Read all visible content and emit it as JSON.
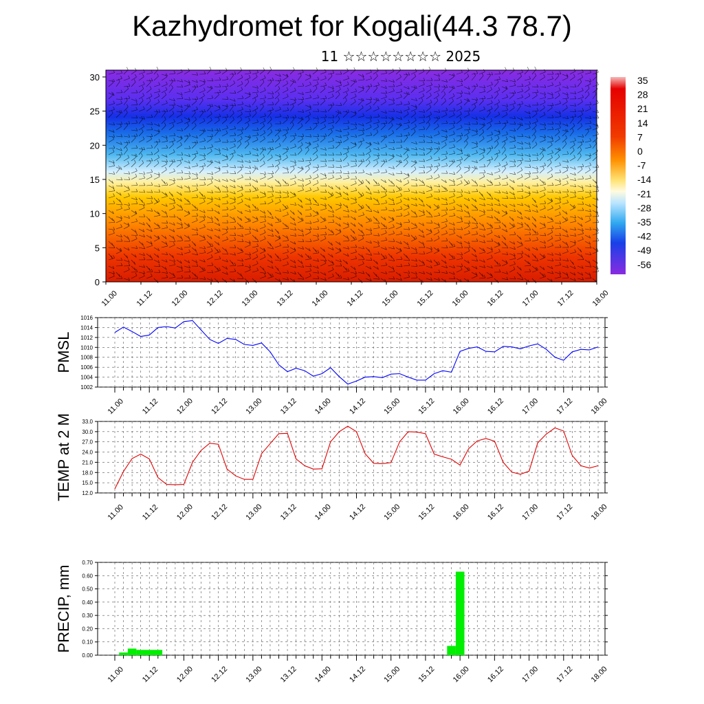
{
  "header": {
    "title": "Kazhydromet for Kogali(44.3 78.7)",
    "subtitle": "11 ☆☆☆☆☆☆☆☆ 2025"
  },
  "chart_data": [
    {
      "type": "heatmap",
      "title": "",
      "xlabel": "",
      "ylabel": "",
      "x_tick_labels": [
        "11.00",
        "11.12",
        "12.00",
        "12.12",
        "13.00",
        "13.12",
        "14.00",
        "14.12",
        "15.00",
        "15.12",
        "16.00",
        "16.12",
        "17.00",
        "17.12",
        "18.00"
      ],
      "y_ticks": [
        0,
        5,
        10,
        15,
        20,
        25,
        30
      ],
      "ylim": [
        0,
        31
      ],
      "colorbar_labels": [
        "35",
        "28",
        "21",
        "14",
        "7",
        "0",
        "-7",
        "-14",
        "-21",
        "-28",
        "-35",
        "-42",
        "-49",
        "-56"
      ],
      "colors": {
        "low": "#8a2be2",
        "mid": "#ffff99",
        "high": "#e60000"
      },
      "overlay": "wind barbs"
    },
    {
      "type": "line",
      "ylabel": "PMSL",
      "color": "#0000ff",
      "ylim": [
        1002,
        1016
      ],
      "y_tick_labels": [
        "1002",
        "1004",
        "1006",
        "1008",
        "1010",
        "1012",
        "1014",
        "1016"
      ],
      "x_tick_labels": [
        "11.00",
        "11.12",
        "12.00",
        "12.12",
        "13.00",
        "13.12",
        "14.00",
        "14.12",
        "15.00",
        "15.12",
        "16.00",
        "16.12",
        "17.00",
        "17.12",
        "18.00"
      ],
      "values": [
        1013.0,
        1014.1,
        1013.2,
        1012.2,
        1012.5,
        1014.0,
        1014.2,
        1013.9,
        1015.2,
        1015.4,
        1013.5,
        1011.6,
        1010.8,
        1011.8,
        1011.6,
        1010.6,
        1010.4,
        1010.9,
        1009.1,
        1006.5,
        1005.1,
        1005.8,
        1005.3,
        1004.2,
        1004.7,
        1005.9,
        1004.1,
        1002.6,
        1003.2,
        1004.0,
        1004.1,
        1003.9,
        1004.6,
        1004.7,
        1004.0,
        1003.4,
        1003.4,
        1004.7,
        1005.3,
        1005.0,
        1009.2,
        1009.8,
        1010.1,
        1009.2,
        1009.1,
        1010.2,
        1010.1,
        1009.7,
        1010.3,
        1010.7,
        1009.6,
        1008.0,
        1007.4,
        1009.1,
        1009.6,
        1009.5,
        1010.1
      ]
    },
    {
      "type": "line",
      "ylabel": "TEMP at 2 M",
      "color": "#e00000",
      "ylim": [
        12.0,
        33.0
      ],
      "y_tick_labels": [
        "12.0",
        "15.0",
        "18.0",
        "21.0",
        "24.0",
        "27.0",
        "30.0",
        "33.0"
      ],
      "x_tick_labels": [
        "11.00",
        "11.12",
        "12.00",
        "12.12",
        "13.00",
        "13.12",
        "14.00",
        "14.12",
        "15.00",
        "15.12",
        "16.00",
        "16.12",
        "17.00",
        "17.12",
        "18.00"
      ],
      "values": [
        13.2,
        18.3,
        22.1,
        23.4,
        22.0,
        16.5,
        14.5,
        14.4,
        14.5,
        21.0,
        24.5,
        26.6,
        26.3,
        19.0,
        17.0,
        16.0,
        16.0,
        23.5,
        26.5,
        29.4,
        29.5,
        22.0,
        20.0,
        19.0,
        19.1,
        27.0,
        30.0,
        31.6,
        30.0,
        23.5,
        20.7,
        20.6,
        20.9,
        27.0,
        30.0,
        29.9,
        29.4,
        23.4,
        22.6,
        21.9,
        20.2,
        25.0,
        27.3,
        28.0,
        27.2,
        21.0,
        18.1,
        17.5,
        18.4,
        26.7,
        29.3,
        31.1,
        30.2,
        23.0,
        20.0,
        19.3,
        20.0
      ]
    },
    {
      "type": "bar",
      "ylabel": "PRECIP, mm",
      "color": "#00ee00",
      "ylim": [
        0.0,
        0.7
      ],
      "y_tick_labels": [
        "0.00",
        "0.10",
        "0.20",
        "0.30",
        "0.40",
        "0.50",
        "0.60",
        "0.70"
      ],
      "x_tick_labels": [
        "11.00",
        "11.12",
        "12.00",
        "12.12",
        "13.00",
        "13.12",
        "14.00",
        "14.12",
        "15.00",
        "15.12",
        "16.00",
        "16.12",
        "17.00",
        "17.12",
        "18.00"
      ],
      "values": [
        0.0,
        0.02,
        0.05,
        0.04,
        0.04,
        0.04,
        0,
        0,
        0,
        0,
        0,
        0,
        0,
        0,
        0,
        0,
        0,
        0,
        0,
        0,
        0,
        0,
        0,
        0,
        0,
        0,
        0,
        0,
        0,
        0,
        0,
        0,
        0,
        0,
        0,
        0,
        0,
        0,
        0,
        0.07,
        0.63,
        0,
        0,
        0,
        0,
        0,
        0,
        0,
        0,
        0,
        0,
        0,
        0,
        0,
        0,
        0,
        0
      ]
    }
  ]
}
